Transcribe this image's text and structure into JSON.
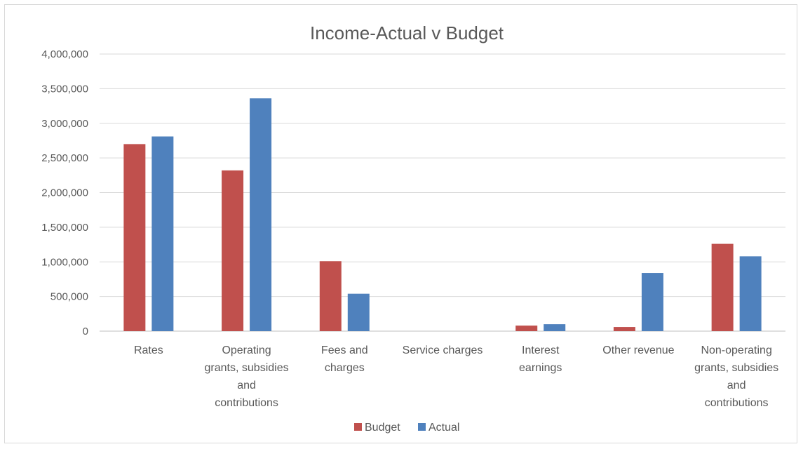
{
  "chart_data": {
    "type": "bar",
    "title": "Income-Actual v Budget",
    "categories": [
      [
        "Rates"
      ],
      [
        "Operating",
        "grants, subsidies",
        "and",
        "contributions"
      ],
      [
        "Fees and",
        "charges"
      ],
      [
        "Service charges"
      ],
      [
        "Interest",
        "earnings"
      ],
      [
        "Other revenue"
      ],
      [
        "Non-operating",
        "grants, subsidies",
        "and",
        "contributions"
      ]
    ],
    "series": [
      {
        "name": "Budget",
        "color": "#c0504d",
        "values": [
          2700000,
          2320000,
          1010000,
          0,
          80000,
          60000,
          1260000
        ]
      },
      {
        "name": "Actual",
        "color": "#4f81bd",
        "values": [
          2810000,
          3360000,
          540000,
          0,
          100000,
          840000,
          1080000
        ]
      }
    ],
    "yticks": [
      "4,000,000",
      "3,500,000",
      "3,000,000",
      "2,500,000",
      "2,000,000",
      "1,500,000",
      "1,000,000",
      "500,000",
      "0"
    ],
    "ylim": [
      0,
      4000000
    ],
    "grid": true,
    "legend": "bottom"
  }
}
